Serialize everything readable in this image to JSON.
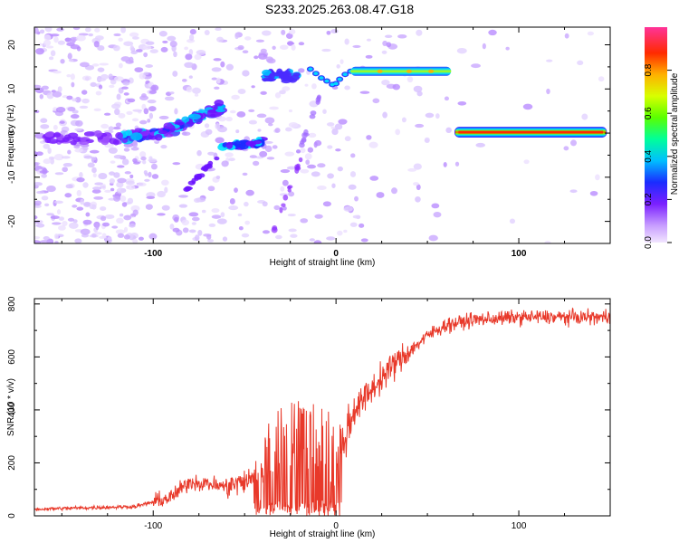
{
  "title": "S233.2025.263.08.47.G18",
  "chart_data": [
    {
      "type": "heatmap",
      "xlabel": "Height of straight line (km)",
      "ylabel": "Frequency (Hz)",
      "xlim": [
        -165,
        150
      ],
      "ylim": [
        -25,
        24
      ],
      "x_ticks": [
        -100,
        0,
        100
      ],
      "y_ticks": [
        -20,
        -10,
        0,
        10,
        20
      ],
      "x_tick_labels": [
        "-100",
        "0",
        "100"
      ],
      "y_tick_labels": [
        "-20",
        "-10",
        "0",
        "10",
        "20"
      ],
      "colorbar": {
        "label": "Normalized spectral amplitude",
        "range": [
          0,
          1
        ],
        "ticks": [
          0.0,
          0.2,
          0.4,
          0.6,
          0.8
        ],
        "tick_labels": [
          "0.0",
          "0.2",
          "0.4",
          "0.6",
          "0.8"
        ]
      },
      "features": [
        {
          "name": "tone-right",
          "x": [
            65,
            148
          ],
          "y": [
            0,
            0
          ],
          "amplitude": 0.9
        },
        {
          "name": "tone-upper",
          "x": [
            8,
            63
          ],
          "y": [
            14,
            14
          ],
          "amplitude": 0.6
        },
        {
          "name": "descending-curve",
          "x": [
            -14,
            -5,
            0,
            5
          ],
          "y": [
            14,
            12,
            11,
            13.5
          ],
          "amplitude": 0.4
        },
        {
          "name": "cluster-upper",
          "x": [
            -38,
            -22
          ],
          "y": [
            12,
            15
          ],
          "amplitude": 0.25
        },
        {
          "name": "rising-band",
          "x": [
            -115,
            -90,
            -65
          ],
          "y": [
            -1,
            1.5,
            6
          ],
          "amplitude": 0.3
        },
        {
          "name": "lower-cluster",
          "x": [
            -62,
            -40
          ],
          "y": [
            -3,
            -2
          ],
          "amplitude": 0.35
        }
      ]
    },
    {
      "type": "line",
      "xlabel": "Height of straight line (km)",
      "ylabel": "SNR (10 * v/v)",
      "xlim": [
        -165,
        150
      ],
      "ylim": [
        0,
        820
      ],
      "x_ticks": [
        -100,
        0,
        100
      ],
      "y_ticks": [
        0,
        200,
        400,
        600,
        800
      ],
      "x_tick_labels": [
        "-100",
        "0",
        "100"
      ],
      "y_tick_labels": [
        "0",
        "200",
        "400",
        "600",
        "800"
      ],
      "series_color": "#e8392a",
      "profile": [
        {
          "x": -165,
          "y": 25
        },
        {
          "x": -140,
          "y": 30
        },
        {
          "x": -110,
          "y": 35
        },
        {
          "x": -90,
          "y": 70
        },
        {
          "x": -80,
          "y": 130
        },
        {
          "x": -60,
          "y": 110
        },
        {
          "x": -45,
          "y": 140
        },
        {
          "x": -30,
          "y": 230
        },
        {
          "x": -15,
          "y": 260
        },
        {
          "x": -5,
          "y": 230
        },
        {
          "x": 0,
          "y": 150
        },
        {
          "x": 5,
          "y": 300
        },
        {
          "x": 10,
          "y": 400
        },
        {
          "x": 20,
          "y": 480
        },
        {
          "x": 30,
          "y": 560
        },
        {
          "x": 40,
          "y": 620
        },
        {
          "x": 50,
          "y": 680
        },
        {
          "x": 60,
          "y": 720
        },
        {
          "x": 75,
          "y": 740
        },
        {
          "x": 100,
          "y": 750
        },
        {
          "x": 150,
          "y": 750
        }
      ]
    }
  ]
}
